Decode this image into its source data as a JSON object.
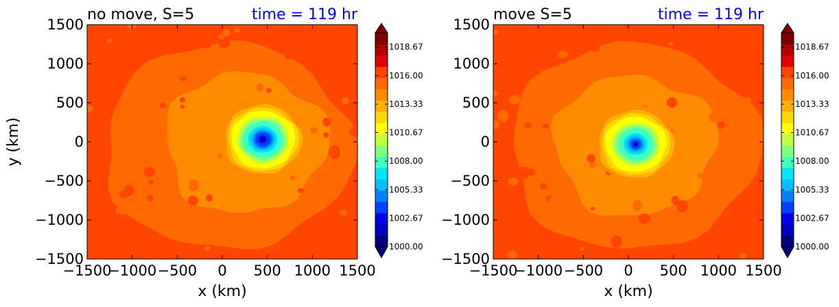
{
  "colors": {
    "cmap": [
      "#00007f",
      "#0000bf",
      "#0000ff",
      "#0040ff",
      "#0080ff",
      "#00bfff",
      "#00e5ff",
      "#40ffbf",
      "#80ff80",
      "#bfff40",
      "#ffff00",
      "#ffd700",
      "#ffb000",
      "#ff8c00",
      "#ff6a00",
      "#ff4500",
      "#e00000",
      "#b00000",
      "#7f0000"
    ],
    "title_time": "#0000ff"
  },
  "chart_data": [
    {
      "type": "heatmap",
      "title": "no move, S=5",
      "time_label": "time = 119 hr",
      "xlabel": "x (km)",
      "ylabel": "y (km)",
      "xlim": [
        -1500,
        1500
      ],
      "ylim": [
        -1500,
        1500
      ],
      "xticks": [
        "−1500",
        "−1000",
        "−500",
        "0",
        "500",
        "1000",
        "1500"
      ],
      "yticks": [
        "1500",
        "1000",
        "500",
        "0",
        "−500",
        "−1000",
        "−1500"
      ],
      "field": {
        "min_center": [
          450,
          30
        ],
        "min_pressure": 1000.0,
        "ambient_pressure": 1016.5
      },
      "colorbar": {
        "min": 1000.0,
        "max": 1020.0,
        "extend": "both",
        "ticks": [
          "1018.67",
          "1016.00",
          "1013.33",
          "1010.67",
          "1008.00",
          "1005.33",
          "1002.67",
          "1000.00"
        ]
      }
    },
    {
      "type": "heatmap",
      "title": "move S=5",
      "time_label": "time = 119 hr",
      "xlabel": "x (km)",
      "ylabel": "",
      "xlim": [
        -1500,
        1500
      ],
      "ylim": [
        -1500,
        1500
      ],
      "xticks": [
        "−1500",
        "−1000",
        "−500",
        "0",
        "500",
        "1000",
        "1500"
      ],
      "yticks": [
        "1500",
        "1000",
        "500",
        "0",
        "−500",
        "−1000",
        "−1500"
      ],
      "field": {
        "min_center": [
          80,
          -30
        ],
        "min_pressure": 1001.5,
        "ambient_pressure": 1016.5
      },
      "colorbar": {
        "min": 1000.0,
        "max": 1020.0,
        "extend": "both",
        "ticks": [
          "1018.67",
          "1016.00",
          "1013.33",
          "1010.67",
          "1008.00",
          "1005.33",
          "1002.67",
          "1000.00"
        ]
      }
    }
  ]
}
